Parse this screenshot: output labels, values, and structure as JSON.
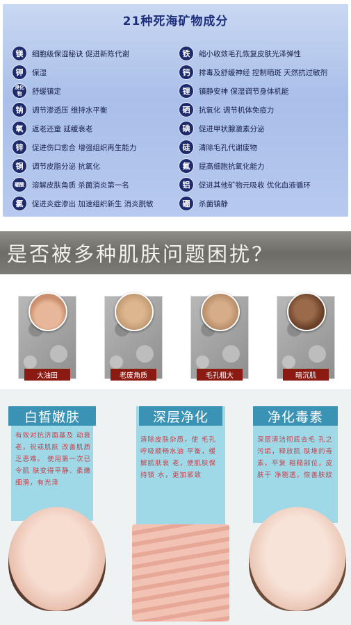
{
  "minerals": {
    "title": "21种死海矿物成分",
    "left": [
      {
        "badge": "镁",
        "text": "细胞级保湿秘诀 促进新陈代谢"
      },
      {
        "badge": "钾",
        "text": "保湿"
      },
      {
        "badge": "溴化物",
        "text": "舒缓镇定"
      },
      {
        "badge": "钠",
        "text": "调节渗透压 维持水平衡"
      },
      {
        "badge": "氧",
        "text": "返老还童 延缓衰老"
      },
      {
        "badge": "锌",
        "text": "促进伤口愈合 增强组织再生能力"
      },
      {
        "badge": "铜",
        "text": "调节皮脂分泌 抗氧化"
      },
      {
        "badge": "硼酸",
        "text": "溶解皮肤角质 杀菌消炎第一名"
      },
      {
        "badge": "氯",
        "text": "促进炎症渗出 加速组织新生 消炎脱敏"
      }
    ],
    "right": [
      {
        "badge": "铁",
        "text": "缩小收敛毛孔恢复皮肤光泽弹性"
      },
      {
        "badge": "钙",
        "text": "排毒及舒缓神经 控制晒斑 天然抗过敏剂"
      },
      {
        "badge": "锂",
        "text": "镇静安神 保湿调节身体机能"
      },
      {
        "badge": "硒",
        "text": "抗氧化 调节机体免疫力"
      },
      {
        "badge": "碘",
        "text": "促进甲状腺激素分泌"
      },
      {
        "badge": "硅",
        "text": "清除毛孔代谢废物"
      },
      {
        "badge": "氟",
        "text": "提高细胞抗氧化能力"
      },
      {
        "badge": "铝",
        "text": "促进其他矿物元吸收 优化血液循环"
      },
      {
        "badge": "硼",
        "text": "杀菌镇静"
      }
    ]
  },
  "banner": {
    "text": "是否被多种肌肤问题困扰？"
  },
  "problems": [
    {
      "label": "大油田",
      "color": "#d9a88c"
    },
    {
      "label": "老废角质",
      "color": "#c9a07a"
    },
    {
      "label": "毛孔粗大",
      "color": "#c79a76"
    },
    {
      "label": "暗沉肌",
      "color": "#8a5a3c"
    }
  ],
  "cards": [
    {
      "title": "白皙嫩肤",
      "text": "有效对抗济面基及 动衰老，祝或肌肤 改善肌质乏恶难。 使用第一次已令肌 肤变得平静、柔嫩 细滑，有光泽"
    },
    {
      "title": "深层净化",
      "text": "清除皮肤杂质，使 毛孔呼吸顺畅水油 平衡，缓解肌肤衰 老，使肌肤保持锁 水，更加紧致"
    },
    {
      "title": "净化毒素",
      "text": "深层清洁彻底去毛 孔之污垢，释放肌 肤堆的毒素，平复 粗糙部位，皮肤干 净剔透，恢善肤紋"
    }
  ],
  "colors": {
    "badge": "#1d2a6e",
    "card_title": "#3a93b5",
    "card": "#9fd8e6",
    "card_text": "#c4434e",
    "label": "#8a1a12"
  }
}
